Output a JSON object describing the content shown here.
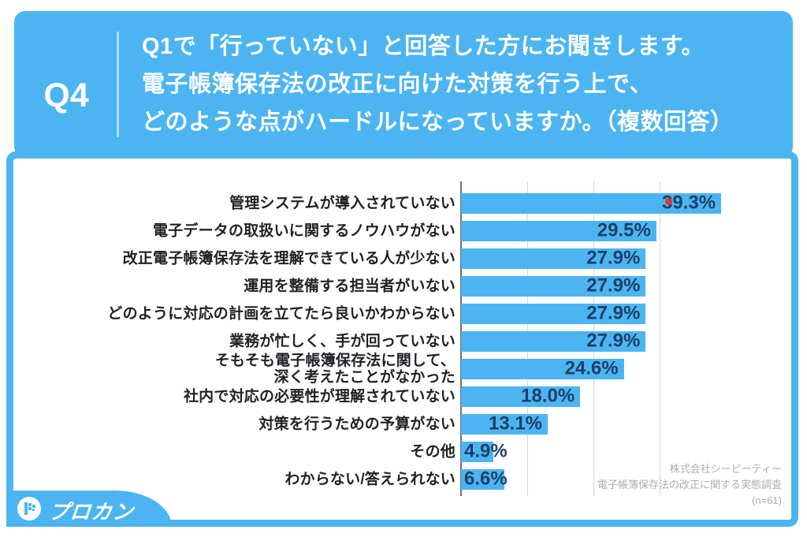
{
  "page": {
    "background": "#ffffff",
    "accent_blue": "#4cb5f1"
  },
  "header": {
    "question_number": "Q4",
    "question_text": "Q1で「行っていない」と回答した方にお聞きします。\n電子帳簿保存法の改正に向けた対策を行う上で、\nどのような点がハードルになっていますか。（複数回答）"
  },
  "chart_data": {
    "type": "bar",
    "orientation": "horizontal",
    "title": "",
    "categories": [
      "管理システムが導入されていない",
      "電子データの取扱いに関するノウハウがない",
      "改正電子帳簿保存法を理解できている人が少ない",
      "運用を整備する担当者がいない",
      "どのように対応の計画を立てたら良いかわからない",
      "業務が忙しく、手が回っていない",
      "そもそも電子帳簿保存法に関して、\n深く考えたことがなかった",
      "社内で対応の必要性が理解されていない",
      "対策を行うための予算がない",
      "その他",
      "わからない/答えられない"
    ],
    "values": [
      39.3,
      29.5,
      27.9,
      27.9,
      27.9,
      27.9,
      24.6,
      18.0,
      13.1,
      4.9,
      6.6
    ],
    "value_labels": [
      "39.3%",
      "29.5%",
      "27.9%",
      "27.9%",
      "27.9%",
      "27.9%",
      "24.6%",
      "18.0%",
      "13.1%",
      "4.9%",
      "6.6%"
    ],
    "unit": "%",
    "xlim": [
      0,
      45
    ],
    "gridline_step": 10,
    "grid": true,
    "legend": "none",
    "bar_color": "#4cb5f1",
    "value_label_color": "#1b4068",
    "label_outside_threshold": 10
  },
  "source": {
    "text": "株式会社シーピーティー\n電子帳簿保存法の改正に関する実態調査\n(n=61)"
  },
  "logo": {
    "text": "プロカン",
    "icon": "procan-pixel-flag"
  }
}
